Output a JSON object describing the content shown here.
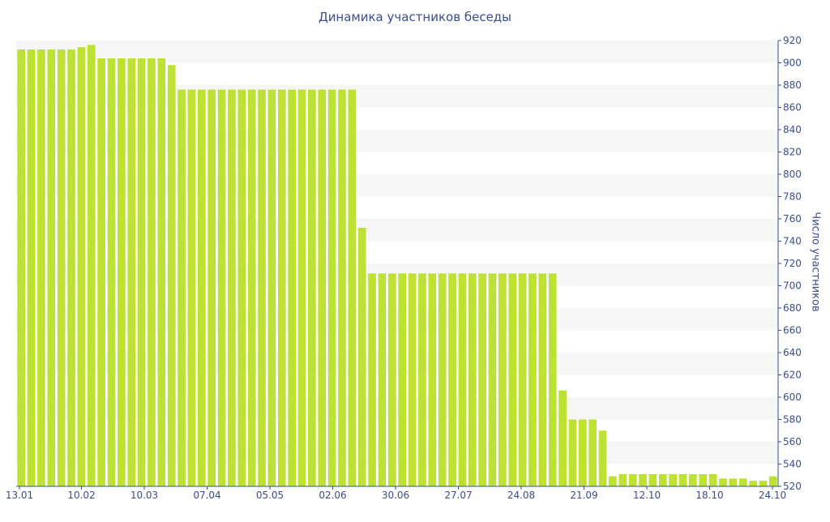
{
  "chart_data": {
    "type": "bar",
    "title": "Динамика участников беседы",
    "ylabel": "Число участников",
    "xlabel": "",
    "ylim": [
      520,
      920
    ],
    "yticks": [
      520,
      540,
      560,
      580,
      600,
      620,
      640,
      660,
      680,
      700,
      720,
      740,
      760,
      780,
      800,
      820,
      840,
      860,
      880,
      900,
      920
    ],
    "xtick_labels": [
      "13.01",
      "10.02",
      "10.03",
      "07.04",
      "05.05",
      "02.06",
      "30.06",
      "27.07",
      "24.08",
      "21.09",
      "12.10",
      "18.10",
      "24.10"
    ],
    "grid": "horizontal bands",
    "bar_color": "#bde232",
    "values": [
      912,
      912,
      912,
      912,
      912,
      912,
      914,
      916,
      904,
      904,
      904,
      904,
      904,
      904,
      904,
      898,
      876,
      876,
      876,
      876,
      876,
      876,
      876,
      876,
      876,
      876,
      876,
      876,
      876,
      876,
      876,
      876,
      876,
      876,
      752,
      711,
      711,
      711,
      711,
      711,
      711,
      711,
      711,
      711,
      711,
      711,
      711,
      711,
      711,
      711,
      711,
      711,
      711,
      711,
      606,
      580,
      580,
      580,
      570,
      529,
      531,
      531,
      531,
      531,
      531,
      531,
      531,
      531,
      531,
      531,
      527,
      527,
      527,
      525,
      525,
      529
    ]
  }
}
